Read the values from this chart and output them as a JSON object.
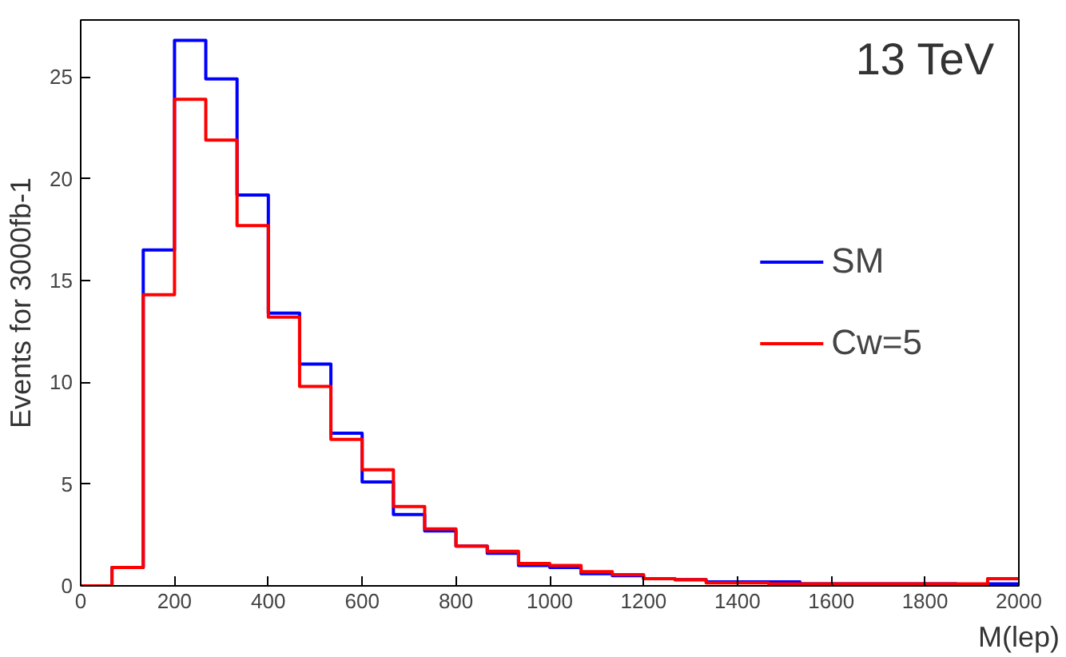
{
  "chart_data": {
    "type": "histogram",
    "xlabel": "M(lep)",
    "ylabel": "Events for 3000fb-1",
    "annotations": [
      "13 TeV"
    ],
    "bins": [
      0,
      66.67,
      133.33,
      200,
      266.67,
      333.33,
      400,
      466.67,
      533.33,
      600,
      666.67,
      733.33,
      800,
      866.67,
      933.33,
      1000,
      1066.67,
      1133.33,
      1200,
      1266.67,
      1333.33,
      1400,
      1466.67,
      1533.33,
      1600,
      1666.67,
      1733.33,
      1800,
      1866.67,
      1933.33,
      2000
    ],
    "series": [
      {
        "name": "SM",
        "color": "#0000ff",
        "values": [
          0,
          0.9,
          16.5,
          26.8,
          24.9,
          19.2,
          13.4,
          10.9,
          7.5,
          5.1,
          3.5,
          2.7,
          1.95,
          1.6,
          1.0,
          0.9,
          0.6,
          0.5,
          0.35,
          0.3,
          0.2,
          0.2,
          0.2,
          0.1,
          0.1,
          0.1,
          0.1,
          0.1,
          0.05,
          0.1
        ]
      },
      {
        "name": "Cw=5",
        "color": "#ff0000",
        "values": [
          0,
          0.9,
          14.3,
          23.9,
          21.9,
          17.7,
          13.2,
          9.8,
          7.2,
          5.7,
          3.9,
          2.8,
          1.95,
          1.7,
          1.1,
          1.0,
          0.7,
          0.55,
          0.35,
          0.3,
          0.15,
          0.15,
          0.1,
          0.1,
          0.1,
          0.1,
          0.1,
          0.1,
          0.1,
          0.35
        ]
      }
    ],
    "xlim": [
      0,
      2000
    ],
    "ylim": [
      0,
      27.8
    ],
    "xticks": [
      0,
      200,
      400,
      600,
      800,
      1000,
      1200,
      1400,
      1600,
      1800,
      2000
    ],
    "yticks": [
      0,
      5,
      10,
      15,
      20,
      25
    ],
    "grid": false,
    "legend": "right"
  }
}
